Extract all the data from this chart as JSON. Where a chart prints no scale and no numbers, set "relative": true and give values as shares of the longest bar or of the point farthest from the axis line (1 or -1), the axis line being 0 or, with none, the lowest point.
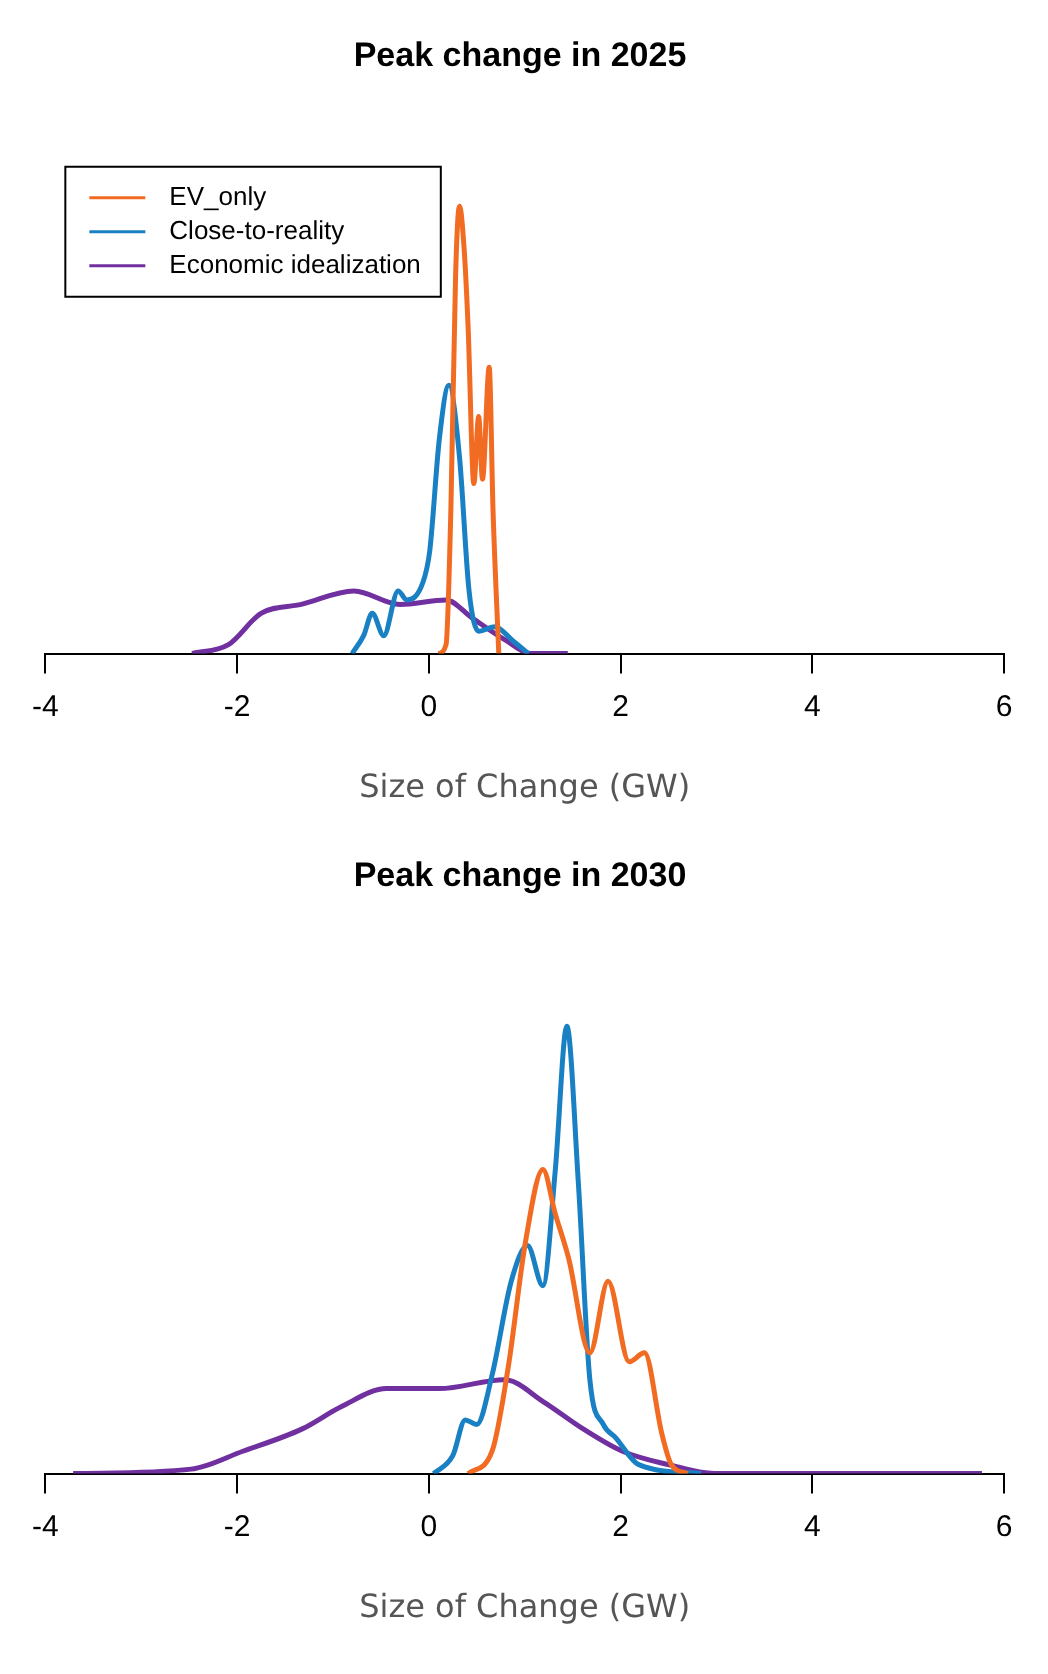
{
  "chart_data": [
    {
      "type": "line",
      "title": "Peak change in 2025",
      "xlabel": "Size of Change (GW)",
      "relative": true,
      "xlim": [
        -4,
        6
      ],
      "xticks": [
        -4,
        -2,
        0,
        2,
        4,
        6
      ],
      "legend": "top left",
      "marker": "none",
      "grid": false,
      "series": [
        {
          "name": "EV_only",
          "color": "#f26b22",
          "x": [
            0.1,
            0.18,
            0.23,
            0.28,
            0.32,
            0.37,
            0.41,
            0.47,
            0.52,
            0.56,
            0.63,
            0.67,
            0.73
          ],
          "values": [
            0,
            0.02,
            0.32,
            0.85,
            1,
            0.9,
            0.73,
            0.38,
            0.53,
            0.39,
            0.64,
            0.32,
            0
          ]
        },
        {
          "name": "Close-to-reality",
          "color": "#1a80c4",
          "x": [
            -0.8,
            -0.68,
            -0.59,
            -0.47,
            -0.32,
            -0.23,
            -0.06,
            0.01,
            0.11,
            0.21,
            0.32,
            0.42,
            0.52,
            0.69,
            0.87,
            1.04
          ],
          "values": [
            0,
            0.04,
            0.09,
            0.04,
            0.14,
            0.12,
            0.16,
            0.23,
            0.48,
            0.6,
            0.44,
            0.14,
            0.05,
            0.06,
            0.03,
            0
          ]
        },
        {
          "name": "Economic idealization",
          "color": "#7030a0",
          "x": [
            -2.47,
            -2.09,
            -1.75,
            -1.33,
            -0.78,
            -0.3,
            0.18,
            0.45,
            0.8,
            1.07,
            1.45
          ],
          "values": [
            0,
            0.02,
            0.09,
            0.11,
            0.14,
            0.11,
            0.12,
            0.08,
            0.03,
            0,
            0
          ]
        }
      ]
    },
    {
      "type": "line",
      "title": "Peak change in 2030",
      "xlabel": "Size of Change (GW)",
      "relative": true,
      "xlim": [
        -4,
        6
      ],
      "xticks": [
        -4,
        -2,
        0,
        2,
        4,
        6
      ],
      "marker": "none",
      "grid": false,
      "series": [
        {
          "color": "#f26b22",
          "x": [
            0.41,
            0.66,
            0.83,
            1.01,
            1.19,
            1.32,
            1.46,
            1.68,
            1.87,
            2.09,
            2.25,
            2.43,
            2.53,
            2.7
          ],
          "values": [
            0,
            0.05,
            0.24,
            0.52,
            0.68,
            0.58,
            0.48,
            0.27,
            0.43,
            0.25,
            0.27,
            0.09,
            0.02,
            0
          ]
        },
        {
          "color": "#1a80c4",
          "x": [
            0.05,
            0.25,
            0.38,
            0.5,
            0.66,
            0.86,
            1.03,
            1.19,
            1.32,
            1.44,
            1.56,
            1.68,
            1.82,
            1.95,
            2.19,
            2.84
          ],
          "values": [
            0,
            0.04,
            0.12,
            0.11,
            0.22,
            0.43,
            0.51,
            0.42,
            0.68,
            1,
            0.65,
            0.21,
            0.11,
            0.08,
            0.02,
            0
          ]
        },
        {
          "color": "#7030a0",
          "x": [
            -3.71,
            -2.48,
            -1.94,
            -1.32,
            -0.91,
            -0.44,
            0.11,
            0.79,
            1.2,
            1.61,
            2.02,
            2.5,
            2.98,
            4.34,
            4.89,
            5.77
          ],
          "values": [
            0,
            0.01,
            0.05,
            0.1,
            0.15,
            0.19,
            0.19,
            0.21,
            0.16,
            0.1,
            0.05,
            0.02,
            0,
            0,
            0,
            0
          ]
        }
      ]
    }
  ]
}
